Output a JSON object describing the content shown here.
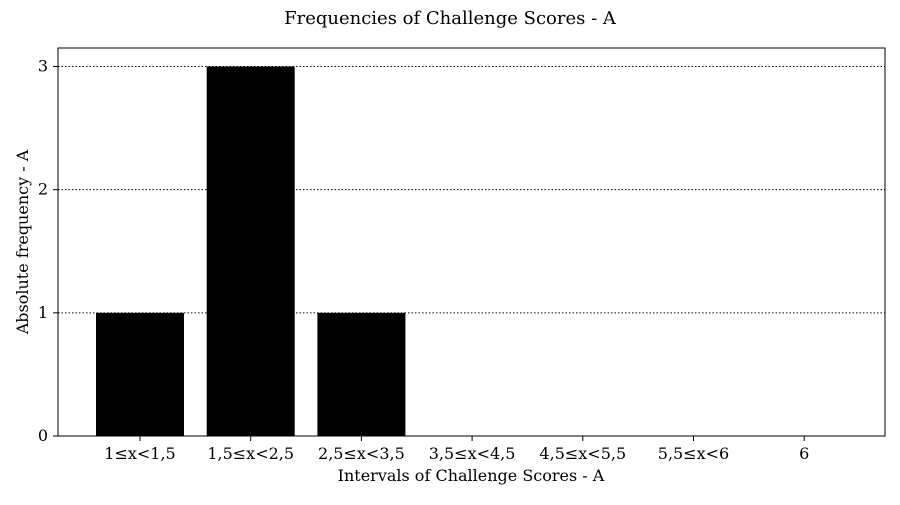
{
  "chart_data": {
    "type": "bar",
    "title": "Frequencies of Challenge Scores - A",
    "xlabel": "Intervals of Challenge Scores - A",
    "ylabel": "Absolute frequency - A",
    "categories": [
      "1≤x<1,5",
      "1,5≤x<2,5",
      "2,5≤x<3,5",
      "3,5≤x<4,5",
      "4,5≤x<5,5",
      "5,5≤x<6",
      "6"
    ],
    "values": [
      1,
      3,
      1,
      0,
      0,
      0,
      0
    ],
    "ylim": [
      0,
      3.15
    ],
    "yticks": [
      0,
      1,
      2,
      3
    ],
    "grid": "horizontal dotted",
    "bar_color": "#000000"
  }
}
